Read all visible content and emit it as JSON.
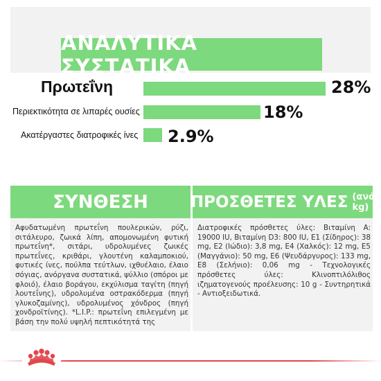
{
  "header": {
    "title": "ΑΝΑΛΥΤΙΚΑ ΣΥΣΤΑΤΙΚΑ"
  },
  "analytics": [
    {
      "label": "Πρωτεΐνη",
      "value_text": "28%",
      "percent": 28
    },
    {
      "label": "Περιεκτικότητα σε λιπαρές ουσίες",
      "value_text": "18%",
      "percent": 18
    },
    {
      "label": "Ακατέργαστες διατροφικές ίνες",
      "value_text": "2.9%",
      "percent": 2.9
    }
  ],
  "composition": {
    "title": "ΣΥΝΘΕΣΗ",
    "text": "Αφυδατωμένη πρωτεΐνη πουλερικών, ρύζι, σιτάλευρο, ζωικά λίπη, απομονωμένη φυτική πρωτεΐνη*, σιτάρι, υδρολυμένες ζωικές πρωτεΐνες, κριθάρι, γλουτένη καλαμποκιού, φυτικές ίνες, πούλπα τεύτλων, ιχθυέλαιο, έλαιο σόγιας, ανόργανα συστατικά, ψύλλιο (σπόροι με φλοιό), έλαιο βοράγου, εκχύλισμα ταγίτη (πηγή λουτεΐνης), υδρολυμένα οστρακόδερμα (πηγή γλυκοζαμίνης), υδρολυμένος χόνδρος (πηγή χονδροϊτίνης). *L.I.P.: πρωτεΐνη επιλεγμένη με βάση την πολύ υψηλή πεπτικότητά της"
  },
  "additives": {
    "title": "ΠΡΟΣΘΕΤΕΣ ΥΛΕΣ",
    "subtitle": "(ανά kg)",
    "text": "Διατροφικές πρόσθετες ύλες: Βιταμίνη A: 19000 IU, Βιταμίνη D3: 800 IU, E1 (Σίδηρος): 38 mg, E2 (Ιώδιο): 3,8 mg, E4 (Χαλκός): 12 mg, E5 (Μαγγάνιο): 50 mg, E6 (Ψευδάργυρος): 133 mg, E8 (Σελήνιο): 0,06 mg - Τεχνολογικές πρόσθετες ύλες: Κλινοπτιλόλιθος ιζηματογενούς προέλευσης: 10 g - Συντηρητικά - Αντιοξειδωτικά."
  },
  "colors": {
    "accent": "#7dd97d",
    "panel_bg": "#f2f2f2",
    "brand_red": "#e0474c"
  },
  "icons": {
    "brand_logo": "crown-logo-icon"
  }
}
